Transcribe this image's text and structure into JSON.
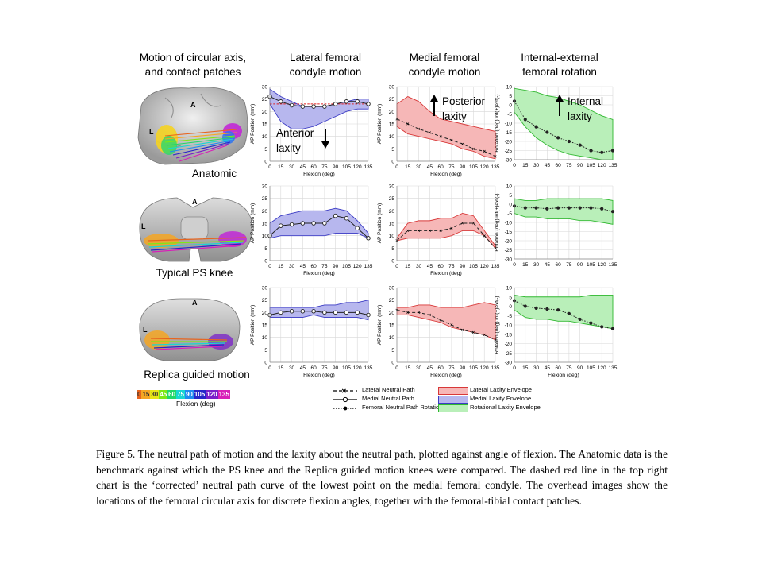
{
  "column_titles": {
    "c0": [
      "Motion of circular axis,",
      "and contact patches"
    ],
    "c1": [
      "Lateral femoral",
      "condyle motion"
    ],
    "c2": [
      "Medial femoral",
      "condyle motion"
    ],
    "c3": [
      "Internal-external",
      "femoral rotation"
    ]
  },
  "row_labels": [
    "Anatomic",
    "Typical PS knee",
    "Replica guided motion"
  ],
  "knee_letters": {
    "a": "A",
    "l": "L"
  },
  "annotations": {
    "anterior": [
      "Anterior",
      "laxity"
    ],
    "posterior": [
      "Posterior",
      "laxity"
    ],
    "internal": [
      "Internal",
      "laxity"
    ]
  },
  "colorbar": {
    "ticks": [
      "0",
      "15",
      "30",
      "45",
      "60",
      "75",
      "90",
      "105",
      "120",
      "135"
    ],
    "colors": [
      "#e8641e",
      "#f5a623",
      "#e7e616",
      "#7ee816",
      "#22d86a",
      "#19d6d2",
      "#1f8bf0",
      "#2626c9",
      "#7a1fc9",
      "#d81fb8"
    ],
    "label": "Flexion (deg)"
  },
  "legend": {
    "lateral_path": "Lateral Neutral Path",
    "medial_path": "Medial Neutral Path",
    "rotation_path": "Femoral Neutral Path Rotation",
    "lateral_env": "Lateral Laxity Envelope",
    "medial_env": "Medial Laxity Envelope",
    "rotation_env": "Rotational Laxity Envelope"
  },
  "colors": {
    "medial_fill": "#b7b7ee",
    "medial_stroke": "#3b3bc4",
    "lateral_fill": "#f6b7b7",
    "lateral_stroke": "#d83838",
    "rotation_fill": "#b9efb9",
    "rotation_stroke": "#30b830",
    "corrected_line": "#e02020"
  },
  "caption": "Figure  5. The neutral path of motion  and the laxity  about the neutral path, plotted against  angle  of flexion. The Anatomic  data is the benchmark  against  which  the PS knee and the Replica guided motion knees were compared. The dashed red line  in the top right  chart is the ‘corrected’ neutral  path curve of the lowest point on the medial femoral  condyle. The overhead images  show the locations  of the femoral  circular  axis for discrete flexion  angles,  together with the femoral-tibial  contact patches.",
  "chart_data": [
    {
      "type": "area",
      "id": "r0c1",
      "xlabel": "Flexion (deg)",
      "ylabel": "AP Position (mm)",
      "xlim": [
        0,
        135
      ],
      "ylim": [
        0,
        30
      ],
      "xticks": [
        0,
        15,
        30,
        45,
        60,
        75,
        90,
        105,
        120,
        135
      ],
      "yticks": [
        0,
        5,
        10,
        15,
        20,
        25,
        30
      ],
      "x": [
        0,
        15,
        30,
        45,
        60,
        75,
        90,
        105,
        120,
        135
      ],
      "envelope_upper": [
        29,
        26,
        24,
        22,
        22,
        22,
        23,
        24,
        25,
        25
      ],
      "envelope_lower": [
        23,
        16,
        13,
        13,
        14,
        16,
        18,
        20,
        21,
        21
      ],
      "path": [
        26,
        24,
        22.5,
        22,
        22,
        22,
        23,
        24,
        24,
        23
      ],
      "path_style": "medial",
      "corrected": [
        23,
        23,
        23,
        23,
        23,
        23,
        23,
        23,
        23,
        23
      ],
      "env": "medial"
    },
    {
      "type": "area",
      "id": "r0c2",
      "xlabel": "Flexion (deg)",
      "ylabel": "AP Position (mm)",
      "xlim": [
        0,
        135
      ],
      "ylim": [
        0,
        30
      ],
      "xticks": [
        0,
        15,
        30,
        45,
        60,
        75,
        90,
        105,
        120,
        135
      ],
      "yticks": [
        0,
        5,
        10,
        15,
        20,
        25,
        30
      ],
      "x": [
        0,
        15,
        30,
        45,
        60,
        75,
        90,
        105,
        120,
        135
      ],
      "envelope_upper": [
        23,
        26,
        24,
        20,
        17,
        16,
        15,
        14,
        13,
        12
      ],
      "envelope_lower": [
        14,
        11,
        10,
        9,
        8,
        7,
        5,
        4,
        2,
        1
      ],
      "path": [
        17,
        15,
        13,
        11.5,
        10,
        8.5,
        7,
        5,
        4,
        2
      ],
      "path_style": "lateral",
      "env": "lateral"
    },
    {
      "type": "area",
      "id": "r0c3",
      "xlabel": "",
      "ylabel": "Rotation (deg) int(+)ext(-)",
      "xlim": [
        0,
        135
      ],
      "ylim": [
        -30,
        10
      ],
      "xticks": [
        0,
        15,
        30,
        45,
        60,
        75,
        90,
        105,
        120,
        135
      ],
      "yticks": [
        -30,
        -25,
        -20,
        -15,
        -10,
        -5,
        0,
        5,
        10
      ],
      "x": [
        0,
        15,
        30,
        45,
        60,
        75,
        90,
        105,
        120,
        135
      ],
      "envelope_upper": [
        9,
        8,
        7,
        5,
        4,
        2,
        0,
        -3,
        -6,
        -8
      ],
      "envelope_lower": [
        -4,
        -12,
        -18,
        -22,
        -25,
        -27,
        -28,
        -29,
        -30,
        -30
      ],
      "path": [
        2,
        -8,
        -12,
        -15,
        -18,
        -20,
        -22,
        -25,
        -26,
        -25
      ],
      "path_style": "rotation",
      "env": "rotation"
    },
    {
      "type": "area",
      "id": "r1c1",
      "xlabel": "Flexion (deg)",
      "ylabel": "AP Position (mm)",
      "xlim": [
        0,
        135
      ],
      "ylim": [
        0,
        30
      ],
      "xticks": [
        0,
        15,
        30,
        45,
        60,
        75,
        90,
        105,
        120,
        135
      ],
      "yticks": [
        0,
        5,
        10,
        15,
        20,
        25,
        30
      ],
      "x": [
        0,
        15,
        30,
        45,
        60,
        75,
        90,
        105,
        120,
        135
      ],
      "envelope_upper": [
        15,
        18,
        19,
        20,
        20,
        20,
        21,
        20,
        16,
        11
      ],
      "envelope_lower": [
        9,
        10,
        10,
        10,
        10,
        10,
        11,
        11,
        11,
        9
      ],
      "path": [
        10,
        14,
        14.5,
        15,
        15,
        15,
        18,
        17,
        13,
        9
      ],
      "path_style": "medial",
      "env": "medial"
    },
    {
      "type": "area",
      "id": "r1c2",
      "xlabel": "Flexion (deg)",
      "ylabel": "AP Position (mm)",
      "xlim": [
        0,
        135
      ],
      "ylim": [
        0,
        30
      ],
      "xticks": [
        0,
        15,
        30,
        45,
        60,
        75,
        90,
        105,
        120,
        135
      ],
      "yticks": [
        0,
        5,
        10,
        15,
        20,
        25,
        30
      ],
      "x": [
        0,
        15,
        30,
        45,
        60,
        75,
        90,
        105,
        120,
        135
      ],
      "envelope_upper": [
        9,
        15,
        16,
        16,
        17,
        17,
        19,
        18,
        12,
        6
      ],
      "envelope_lower": [
        8,
        9,
        9,
        9,
        9,
        10,
        12,
        12,
        10,
        5
      ],
      "path": [
        8,
        12,
        12,
        12,
        12,
        13,
        15,
        15,
        10,
        5
      ],
      "path_style": "lateral",
      "env": "lateral"
    },
    {
      "type": "area",
      "id": "r1c3",
      "xlabel": "",
      "ylabel": "Rotation (deg) int(+)ext(-)",
      "xlim": [
        0,
        135
      ],
      "ylim": [
        -30,
        10
      ],
      "xticks": [
        0,
        15,
        30,
        45,
        60,
        75,
        90,
        105,
        120,
        135
      ],
      "yticks": [
        -30,
        -25,
        -20,
        -15,
        -10,
        -5,
        0,
        5,
        10
      ],
      "x": [
        0,
        15,
        30,
        45,
        60,
        75,
        90,
        105,
        120,
        135
      ],
      "envelope_upper": [
        3,
        2,
        2,
        3,
        3,
        3,
        3,
        3,
        3,
        2
      ],
      "envelope_lower": [
        -5,
        -7,
        -7,
        -8,
        -8,
        -8,
        -9,
        -9,
        -10,
        -11
      ],
      "path": [
        -1,
        -2,
        -2,
        -2.5,
        -2,
        -2,
        -2,
        -2,
        -2.5,
        -4
      ],
      "path_style": "rotation",
      "env": "rotation"
    },
    {
      "type": "area",
      "id": "r2c1",
      "xlabel": "Flexion (deg)",
      "ylabel": "AP Position (mm)",
      "xlim": [
        0,
        135
      ],
      "ylim": [
        0,
        30
      ],
      "xticks": [
        0,
        15,
        30,
        45,
        60,
        75,
        90,
        105,
        120,
        135
      ],
      "yticks": [
        0,
        5,
        10,
        15,
        20,
        25,
        30
      ],
      "x": [
        0,
        15,
        30,
        45,
        60,
        75,
        90,
        105,
        120,
        135
      ],
      "envelope_upper": [
        22,
        22,
        22,
        22,
        22,
        23,
        23,
        24,
        24,
        25
      ],
      "envelope_lower": [
        18,
        18,
        18,
        18,
        19,
        18,
        18,
        18,
        18,
        17
      ],
      "path": [
        19,
        20,
        20.5,
        20.5,
        20.5,
        20,
        20,
        20,
        20,
        19
      ],
      "path_style": "medial",
      "env": "medial"
    },
    {
      "type": "area",
      "id": "r2c2",
      "xlabel": "Flexion (deg)",
      "ylabel": "AP Position (mm)",
      "xlim": [
        0,
        135
      ],
      "ylim": [
        0,
        30
      ],
      "xticks": [
        0,
        15,
        30,
        45,
        60,
        75,
        90,
        105,
        120,
        135
      ],
      "yticks": [
        0,
        5,
        10,
        15,
        20,
        25,
        30
      ],
      "x": [
        0,
        15,
        30,
        45,
        60,
        75,
        90,
        105,
        120,
        135
      ],
      "envelope_upper": [
        22,
        22,
        23,
        23,
        22,
        22,
        22,
        23,
        24,
        23
      ],
      "envelope_lower": [
        19,
        19,
        18,
        17,
        16,
        14,
        13,
        12,
        11,
        9
      ],
      "path": [
        21,
        20,
        20,
        19,
        17,
        15,
        13,
        12,
        11,
        9
      ],
      "path_style": "lateral",
      "env": "lateral"
    },
    {
      "type": "area",
      "id": "r2c3",
      "xlabel": "Flexion (deg)",
      "ylabel": "Rotation (deg) int(+)ext(-)",
      "xlim": [
        0,
        135
      ],
      "ylim": [
        -30,
        10
      ],
      "xticks": [
        0,
        15,
        30,
        45,
        60,
        75,
        90,
        105,
        120,
        135
      ],
      "yticks": [
        -30,
        -25,
        -20,
        -15,
        -10,
        -5,
        0,
        5,
        10
      ],
      "x": [
        0,
        15,
        30,
        45,
        60,
        75,
        90,
        105,
        120,
        135
      ],
      "envelope_upper": [
        6,
        5,
        5,
        5,
        5,
        5,
        5,
        6,
        6,
        6
      ],
      "envelope_lower": [
        -2,
        -6,
        -7,
        -7,
        -8,
        -8,
        -9,
        -10,
        -11,
        -12
      ],
      "path": [
        3,
        0,
        -1,
        -1.5,
        -2,
        -4,
        -7,
        -9,
        -11,
        -12
      ],
      "path_style": "rotation",
      "env": "rotation"
    }
  ]
}
